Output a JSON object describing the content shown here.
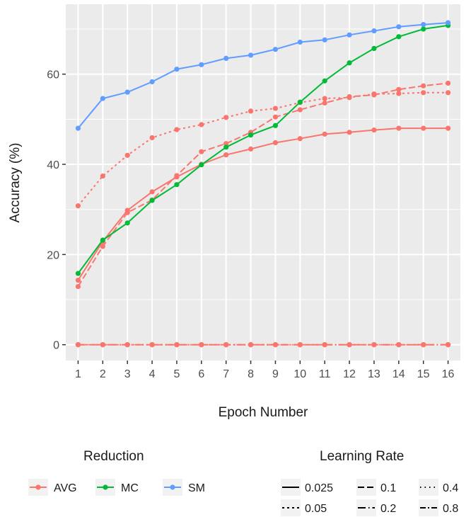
{
  "chart_data": {
    "type": "line",
    "title": "",
    "xlabel": "Epoch Number",
    "ylabel": "Accuracy (%)",
    "x": [
      1,
      2,
      3,
      4,
      5,
      6,
      7,
      8,
      9,
      10,
      11,
      12,
      13,
      14,
      15,
      16
    ],
    "x_ticks": [
      "1",
      "2",
      "3",
      "4",
      "5",
      "6",
      "7",
      "8",
      "9",
      "10",
      "11",
      "12",
      "13",
      "14",
      "15",
      "16"
    ],
    "xlim": [
      0.5,
      16.5
    ],
    "ylim": [
      -3.5,
      75.5
    ],
    "y_ticks": [
      "0",
      "20",
      "40",
      "60"
    ],
    "grid": true,
    "colors": {
      "AVG": "#f8766d",
      "MC": "#00ba38",
      "SM": "#619cff"
    },
    "series": [
      {
        "reduction": "AVG",
        "learning_rate": "0.025",
        "values": [
          14.3,
          22.9,
          29.8,
          33.9,
          37.2,
          40.0,
          42.1,
          43.4,
          44.8,
          45.7,
          46.7,
          47.1,
          47.6,
          48.0,
          48.0,
          48.0
        ]
      },
      {
        "reduction": "AVG",
        "learning_rate": "0.05",
        "values": [
          30.8,
          37.4,
          42.0,
          45.9,
          47.7,
          48.8,
          50.4,
          51.8,
          52.4,
          53.7,
          54.6,
          54.8,
          55.6,
          55.7,
          55.9,
          55.9
        ]
      },
      {
        "reduction": "AVG",
        "learning_rate": "0.1",
        "values": [
          12.9,
          21.8,
          29.3,
          32.1,
          37.5,
          42.8,
          44.6,
          47.1,
          50.5,
          52.1,
          53.6,
          55.0,
          55.4,
          56.6,
          57.4,
          58.0
        ]
      },
      {
        "reduction": "AVG",
        "learning_rate": "0.2",
        "values": [
          0,
          0,
          0,
          0,
          0,
          0,
          0,
          0,
          0,
          0,
          0,
          0,
          0,
          0,
          0,
          0
        ]
      },
      {
        "reduction": "AVG",
        "learning_rate": "0.4",
        "values": [
          0,
          0,
          0,
          0,
          0,
          0,
          0,
          0,
          0,
          0,
          0,
          0,
          0,
          0,
          0,
          0
        ]
      },
      {
        "reduction": "AVG",
        "learning_rate": "0.8",
        "values": [
          0,
          0,
          0,
          0,
          0,
          0,
          0,
          0,
          0,
          0,
          0,
          0,
          0,
          0,
          0,
          0
        ]
      },
      {
        "reduction": "MC",
        "learning_rate": "0.025",
        "values": [
          15.8,
          23.2,
          27.0,
          32.0,
          35.5,
          39.9,
          43.8,
          46.5,
          48.6,
          53.8,
          58.5,
          62.5,
          65.7,
          68.3,
          70.0,
          70.8
        ]
      },
      {
        "reduction": "SM",
        "learning_rate": "0.025",
        "values": [
          48.0,
          54.6,
          56.0,
          58.3,
          61.1,
          62.1,
          63.5,
          64.2,
          65.5,
          67.1,
          67.6,
          68.7,
          69.6,
          70.5,
          71.0,
          71.4
        ]
      }
    ],
    "legend": {
      "position": "bottom",
      "reduction": {
        "title": "Reduction",
        "items": [
          "AVG",
          "MC",
          "SM"
        ]
      },
      "learning_rate": {
        "title": "Learning Rate",
        "items": [
          "0.025",
          "0.05",
          "0.1",
          "0.2",
          "0.4",
          "0.8"
        ]
      }
    }
  }
}
